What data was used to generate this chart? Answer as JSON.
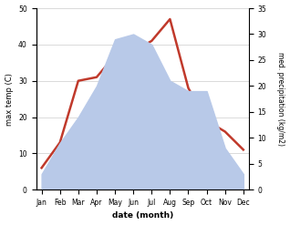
{
  "months": [
    "Jan",
    "Feb",
    "Mar",
    "Apr",
    "May",
    "Jun",
    "Jul",
    "Aug",
    "Sep",
    "Oct",
    "Nov",
    "Dec"
  ],
  "temp": [
    6,
    13,
    30,
    31,
    37,
    38,
    41,
    47,
    28,
    19,
    16,
    11
  ],
  "precip": [
    3,
    9,
    14,
    20,
    29,
    30,
    28,
    21,
    19,
    19,
    8,
    3
  ],
  "temp_ylim": [
    0,
    50
  ],
  "precip_ylim": [
    0,
    35
  ],
  "temp_color": "#c0392b",
  "precip_color": "#b8c9e8",
  "ylabel_left": "max temp (C)",
  "ylabel_right": "med. precipitation (kg/m2)",
  "xlabel": "date (month)",
  "temp_yticks": [
    0,
    10,
    20,
    30,
    40,
    50
  ],
  "precip_yticks": [
    0,
    5,
    10,
    15,
    20,
    25,
    30,
    35
  ],
  "figsize": [
    3.18,
    2.47
  ],
  "dpi": 100
}
